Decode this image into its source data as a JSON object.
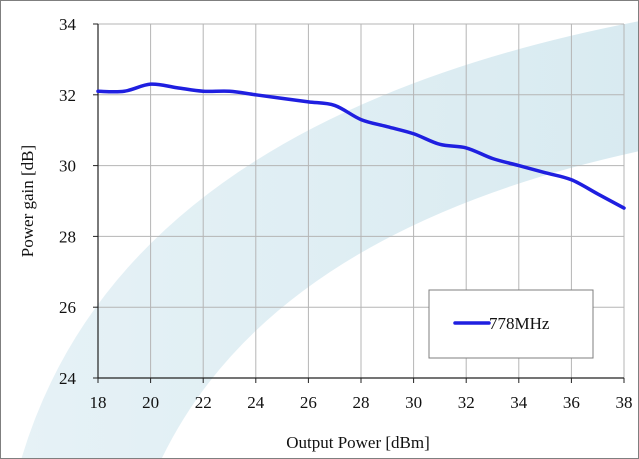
{
  "chart_data": {
    "type": "line",
    "xlabel": "Output Power [dBm]",
    "ylabel": "Power gain [dB]",
    "xlim": [
      18,
      38
    ],
    "ylim": [
      24,
      34
    ],
    "xticks": [
      18,
      20,
      22,
      24,
      26,
      28,
      30,
      32,
      34,
      36,
      38
    ],
    "yticks": [
      24,
      26,
      28,
      30,
      32,
      34
    ],
    "grid": true,
    "legend_position": "bottom-right",
    "series": [
      {
        "name": "778MHz",
        "color": "#1f1fe0",
        "x": [
          18,
          19,
          20,
          21,
          22,
          23,
          24,
          25,
          26,
          27,
          28,
          29,
          30,
          31,
          32,
          33,
          34,
          35,
          36,
          37,
          38
        ],
        "y": [
          32.1,
          32.1,
          32.3,
          32.2,
          32.1,
          32.1,
          32.0,
          31.9,
          31.8,
          31.7,
          31.3,
          31.1,
          30.9,
          30.6,
          30.5,
          30.2,
          30.0,
          29.8,
          29.6,
          29.2,
          28.8
        ]
      }
    ]
  }
}
